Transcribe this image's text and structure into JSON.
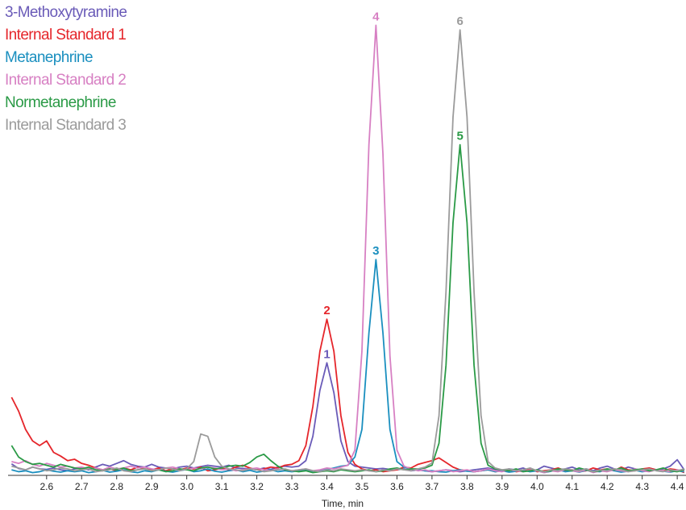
{
  "chart_data": {
    "type": "line",
    "x_label": "Time, min",
    "legend": "top-left",
    "xlim": [
      2.49,
      4.425
    ],
    "ylim": [
      0,
      100
    ],
    "xticks": [
      2.6,
      2.7,
      2.8,
      2.9,
      {
        "value": 3,
        "label": "3.0"
      },
      3.1,
      3.2,
      3.3,
      3.4,
      3.5,
      3.6,
      3.7,
      3.8,
      3.9,
      {
        "value": 4,
        "label": "4.0"
      },
      4.1,
      4.2,
      4.3,
      4.4
    ],
    "x": [
      2.5,
      2.52,
      2.54,
      2.56,
      2.58,
      2.6,
      2.62,
      2.64,
      2.66,
      2.68,
      2.7,
      2.72,
      2.74,
      2.76,
      2.78,
      2.8,
      2.82,
      2.84,
      2.86,
      2.88,
      2.9,
      2.92,
      2.94,
      2.96,
      2.98,
      3,
      3.02,
      3.04,
      3.06,
      3.08,
      3.1,
      3.12,
      3.14,
      3.16,
      3.18,
      3.2,
      3.22,
      3.24,
      3.26,
      3.28,
      3.3,
      3.32,
      3.34,
      3.36,
      3.38,
      3.4,
      3.42,
      3.44,
      3.46,
      3.48,
      3.5,
      3.52,
      3.54,
      3.56,
      3.58,
      3.6,
      3.62,
      3.64,
      3.66,
      3.68,
      3.7,
      3.72,
      3.74,
      3.76,
      3.78,
      3.8,
      3.82,
      3.84,
      3.86,
      3.88,
      3.9,
      3.92,
      3.94,
      3.96,
      3.98,
      4,
      4.02,
      4.04,
      4.06,
      4.08,
      4.1,
      4.12,
      4.14,
      4.16,
      4.18,
      4.2,
      4.22,
      4.24,
      4.26,
      4.28,
      4.3,
      4.32,
      4.34,
      4.36,
      4.38,
      4.4,
      4.42
    ],
    "series": [
      {
        "name": "3-Methoxytyramine",
        "color": "#6a5bb8",
        "peak_label": "1",
        "values": [
          2.5,
          1.5,
          1.2,
          1.8,
          1.4,
          1.3,
          1.6,
          1.2,
          1.0,
          1.4,
          1.6,
          1.2,
          1.8,
          2.4,
          2.0,
          2.6,
          3.2,
          2.4,
          2.0,
          1.8,
          2.4,
          1.8,
          1.6,
          1.4,
          1.8,
          2.0,
          1.6,
          1.9,
          2.2,
          2.0,
          1.8,
          2.2,
          1.6,
          1.5,
          1.4,
          1.2,
          1.6,
          1.3,
          1.8,
          2.0,
          1.8,
          2.0,
          3.2,
          8.5,
          18.5,
          24.5,
          18.0,
          7.5,
          3.0,
          2.0,
          1.8,
          1.6,
          1.4,
          1.5,
          1.3,
          1.2,
          1.4,
          1.0,
          1.2,
          1.0,
          0.8,
          1.0,
          1.2,
          1.0,
          0.8,
          1.0,
          1.2,
          1.4,
          1.6,
          1.2,
          1.0,
          1.4,
          1.2,
          1.6,
          1.0,
          1.2,
          2.0,
          1.6,
          1.2,
          1.4,
          1.8,
          1.2,
          1.4,
          1.0,
          1.6,
          2.0,
          1.4,
          1.2,
          1.8,
          1.4,
          1.0,
          1.6,
          1.2,
          1.4,
          2.0,
          3.4,
          1.2
        ]
      },
      {
        "name": "Internal Standard 1",
        "color": "#e5262b",
        "peak_label": "2",
        "values": [
          17,
          14,
          10,
          7.5,
          6.5,
          7.5,
          5,
          4.2,
          3.2,
          3.5,
          2.6,
          2.2,
          1.6,
          1.2,
          1.4,
          1.0,
          1.6,
          1.2,
          1.8,
          1.4,
          1.2,
          1.6,
          1.0,
          1.4,
          1.2,
          1.6,
          1.4,
          1.8,
          1.0,
          1.2,
          1.6,
          1.2,
          1.8,
          2.2,
          1.6,
          1.2,
          1.4,
          1.8,
          1.6,
          2.2,
          2.4,
          3.2,
          6.5,
          15,
          27,
          34,
          27,
          13,
          5,
          2.4,
          1.4,
          1.0,
          1.2,
          0.8,
          1.0,
          1.2,
          1.8,
          1.6,
          2.4,
          2.8,
          3.2,
          3.8,
          2.8,
          1.8,
          1.2,
          1.0,
          0.8,
          1.0,
          1.2,
          0.8,
          1.0,
          1.2,
          0.8,
          1.0,
          1.4,
          0.8,
          1.0,
          1.2,
          1.6,
          1.0,
          1.2,
          0.8,
          1.0,
          1.6,
          1.2,
          1.4,
          1.0,
          1.8,
          1.2,
          1.0,
          1.4,
          1.6,
          1.2,
          1.0,
          1.4,
          1.2,
          0.6
        ]
      },
      {
        "name": "Metanephrine",
        "color": "#1a8fbf",
        "peak_label": "3",
        "values": [
          1.2,
          0.8,
          1.0,
          0.6,
          0.8,
          1.2,
          0.9,
          0.7,
          1.0,
          0.8,
          1.0,
          0.6,
          0.8,
          1.1,
          0.7,
          0.9,
          1.2,
          0.8,
          0.6,
          1.0,
          0.8,
          1.2,
          0.9,
          0.7,
          1.0,
          1.3,
          0.8,
          1.0,
          1.4,
          0.9,
          0.7,
          1.0,
          1.2,
          0.8,
          1.1,
          0.7,
          0.9,
          1.2,
          0.8,
          1.0,
          0.8,
          1.0,
          1.2,
          0.9,
          1.0,
          1.3,
          1.6,
          2.0,
          2.2,
          4.0,
          10,
          31,
          47,
          31,
          10,
          3.0,
          1.8,
          1.4,
          1.2,
          1.0,
          1.0,
          0.8,
          0.7,
          1.0,
          1.2,
          0.9,
          0.8,
          1.0,
          1.2,
          0.8,
          1.0,
          0.7,
          0.9,
          1.1,
          0.8,
          1.0,
          0.6,
          0.9,
          1.2,
          0.8,
          1.0,
          0.7,
          1.1,
          0.9,
          0.8,
          1.2,
          1.0,
          0.7,
          0.9,
          1.1,
          0.8,
          1.0,
          1.2,
          0.9,
          0.7,
          1.0,
          0.8
        ]
      },
      {
        "name": "Internal Standard 2",
        "color": "#d780c3",
        "peak_label": "4",
        "values": [
          3.0,
          2.6,
          3.2,
          2.4,
          2.0,
          2.6,
          2.2,
          1.8,
          2.0,
          1.6,
          1.8,
          1.4,
          1.6,
          1.2,
          1.8,
          1.4,
          1.6,
          2.0,
          1.6,
          1.8,
          1.4,
          1.2,
          1.6,
          1.8,
          1.4,
          1.2,
          1.6,
          1.4,
          1.8,
          1.6,
          1.2,
          1.4,
          1.0,
          1.2,
          1.4,
          1.6,
          1.2,
          1.0,
          1.4,
          1.2,
          1.0,
          1.2,
          1.4,
          1.0,
          1.2,
          1.6,
          1.4,
          1.8,
          2.2,
          5.5,
          27,
          72,
          98,
          70,
          26,
          5.5,
          2.0,
          1.4,
          1.0,
          1.2,
          0.8,
          1.0,
          1.2,
          0.8,
          1.0,
          1.2,
          0.8,
          1.0,
          1.4,
          1.0,
          0.8,
          1.2,
          1.0,
          0.8,
          1.2,
          1.0,
          0.6,
          1.0,
          0.8,
          1.2,
          1.0,
          0.8,
          1.2,
          0.6,
          1.0,
          0.8,
          1.2,
          1.0,
          0.8,
          1.4,
          1.0,
          0.8,
          1.2,
          1.0,
          0.8,
          1.2,
          1.0
        ]
      },
      {
        "name": "Normetanephrine",
        "color": "#2a9a46",
        "peak_label": "5",
        "values": [
          6.5,
          4.0,
          3.0,
          2.4,
          2.6,
          2.2,
          1.8,
          2.4,
          2.0,
          1.6,
          1.4,
          1.8,
          1.2,
          1.0,
          1.4,
          1.2,
          1.6,
          1.0,
          1.2,
          1.4,
          1.0,
          1.2,
          0.8,
          1.0,
          1.4,
          1.2,
          1.0,
          1.6,
          1.8,
          1.4,
          1.6,
          2.0,
          2.2,
          2.0,
          2.8,
          4.0,
          4.6,
          3.2,
          2.0,
          1.2,
          1.0,
          0.8,
          1.0,
          0.6,
          0.8,
          1.0,
          0.8,
          1.2,
          1.0,
          0.8,
          1.0,
          1.2,
          0.8,
          1.0,
          1.4,
          1.6,
          1.2,
          1.4,
          1.4,
          1.6,
          2.2,
          7,
          24,
          55,
          72,
          55,
          24,
          7,
          2.2,
          1.4,
          1.2,
          1.0,
          1.4,
          0.8,
          1.0,
          1.2,
          0.8,
          1.0,
          1.4,
          1.2,
          1.0,
          1.6,
          1.2,
          0.8,
          1.0,
          1.4,
          1.2,
          1.6,
          1.0,
          1.2,
          1.4,
          1.0,
          1.2,
          1.6,
          1.0,
          0.8,
          1.2
        ]
      },
      {
        "name": "Internal Standard 3",
        "color": "#9b9b9b",
        "peak_label": "6",
        "values": [
          2.0,
          1.6,
          1.2,
          1.8,
          1.4,
          1.0,
          1.2,
          1.6,
          1.4,
          1.0,
          1.2,
          1.4,
          0.8,
          1.0,
          1.2,
          1.6,
          1.0,
          0.8,
          1.2,
          1.4,
          1.0,
          1.2,
          1.6,
          1.4,
          1.0,
          1.4,
          3.0,
          9.0,
          8.5,
          4.0,
          2.0,
          1.4,
          1.2,
          1.0,
          1.4,
          1.2,
          0.8,
          1.0,
          1.2,
          1.4,
          1.0,
          1.2,
          1.4,
          1.0,
          0.8,
          1.2,
          1.0,
          1.4,
          1.2,
          1.0,
          1.2,
          1.0,
          0.8,
          1.2,
          1.0,
          1.4,
          1.2,
          1.0,
          1.4,
          1.8,
          2.7,
          13,
          40,
          78,
          97,
          78,
          40,
          13,
          3.0,
          1.6,
          1.2,
          1.4,
          1.0,
          1.2,
          1.6,
          1.0,
          0.8,
          1.2,
          1.0,
          1.4,
          1.2,
          1.0,
          1.4,
          0.8,
          1.2,
          1.0,
          1.4,
          1.2,
          0.8,
          1.0,
          1.2,
          1.4,
          1.0,
          0.8,
          1.2,
          1.0,
          1.4
        ]
      }
    ]
  }
}
